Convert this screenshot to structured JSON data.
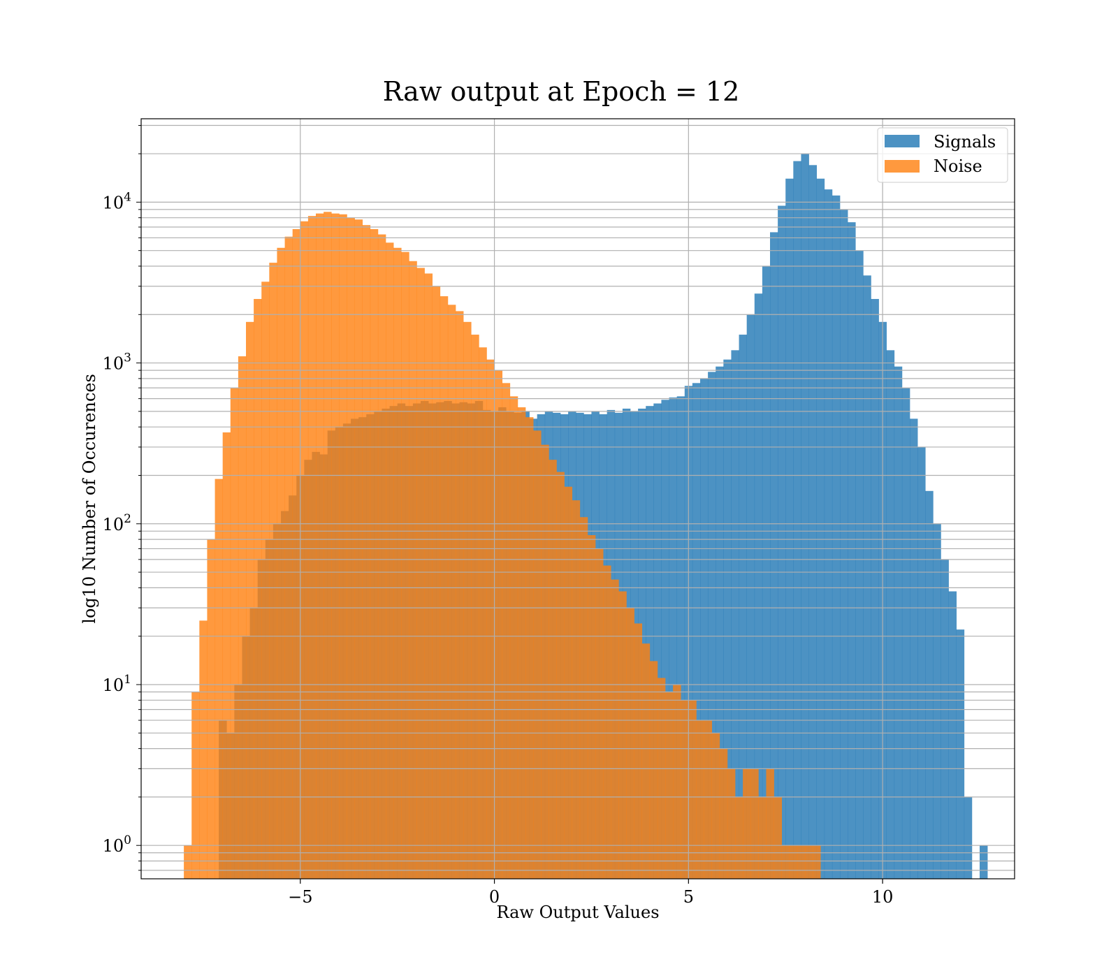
{
  "chart_data": {
    "type": "histogram",
    "title": "Raw output at Epoch = 12",
    "xlabel": "Raw Output Values",
    "ylabel": "log10 Number of Occurences",
    "xlim": [
      -9.1,
      13.4
    ],
    "ylim": [
      0.62,
      33000
    ],
    "yscale": "log",
    "grid": true,
    "legend_position": "top-right",
    "x_ticks": [
      {
        "value": -5,
        "label": "−5"
      },
      {
        "value": 0,
        "label": "0"
      },
      {
        "value": 5,
        "label": "5"
      },
      {
        "value": 10,
        "label": "10"
      }
    ],
    "y_ticks": [
      {
        "value": 1,
        "base": "10",
        "exp": "0"
      },
      {
        "value": 10,
        "base": "10",
        "exp": "1"
      },
      {
        "value": 100,
        "base": "10",
        "exp": "2"
      },
      {
        "value": 1000,
        "base": "10",
        "exp": "3"
      },
      {
        "value": 10000,
        "base": "10",
        "exp": "4"
      }
    ],
    "series": [
      {
        "name": "Signals",
        "color": "#1f77b4",
        "alpha": 0.8,
        "start": -7.1,
        "bin_width": 0.2,
        "counts": [
          6,
          5,
          10,
          20,
          30,
          60,
          80,
          100,
          120,
          150,
          200,
          250,
          280,
          270,
          380,
          400,
          420,
          450,
          460,
          480,
          500,
          520,
          540,
          560,
          540,
          560,
          580,
          560,
          570,
          580,
          560,
          570,
          560,
          580,
          510,
          500,
          530,
          500,
          490,
          500,
          450,
          480,
          500,
          490,
          480,
          500,
          490,
          480,
          500,
          480,
          510,
          490,
          520,
          500,
          520,
          540,
          560,
          590,
          610,
          620,
          720,
          750,
          800,
          880,
          950,
          1050,
          1200,
          1500,
          2000,
          2700,
          4000,
          6500,
          9500,
          14000,
          18000,
          20000,
          17000,
          14000,
          12000,
          11000,
          9000,
          7500,
          5000,
          3500,
          2500,
          1800,
          1200,
          950,
          700,
          450,
          300,
          160,
          100,
          60,
          38,
          22,
          2,
          0,
          1
        ]
      },
      {
        "name": "Noise",
        "color": "#ff7f0e",
        "alpha": 0.8,
        "start": -8.0,
        "bin_width": 0.2,
        "counts": [
          1,
          9,
          25,
          80,
          190,
          370,
          700,
          1100,
          1800,
          2500,
          3200,
          4200,
          5200,
          6100,
          6800,
          7600,
          8200,
          8500,
          8700,
          8500,
          8400,
          8000,
          7800,
          7200,
          6800,
          6300,
          5600,
          5200,
          4900,
          4300,
          3900,
          3600,
          3000,
          2600,
          2300,
          2100,
          1800,
          1500,
          1250,
          1050,
          900,
          750,
          620,
          530,
          460,
          380,
          310,
          250,
          210,
          170,
          140,
          110,
          85,
          70,
          55,
          45,
          38,
          30,
          24,
          18,
          14,
          11,
          9,
          10,
          8,
          8,
          6,
          6,
          5,
          4,
          3,
          2,
          3,
          3,
          2,
          3,
          2,
          1,
          1,
          1,
          1,
          1
        ]
      }
    ]
  }
}
